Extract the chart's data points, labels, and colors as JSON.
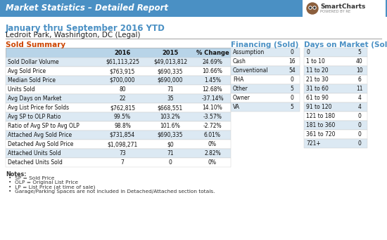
{
  "header_title": "Market Statistics – Detailed Report",
  "header_bg": "#4a90c4",
  "header_text_color": "#ffffff",
  "date_line": "January thru September 2016 YTD",
  "location_line": "Ledroit Park, Washington, DC (Legal)",
  "sold_summary_title": "Sold Summary",
  "sold_headers": [
    "",
    "2016",
    "2015",
    "% Change"
  ],
  "sold_rows": [
    [
      "Sold Dollar Volume",
      "$61,113,225",
      "$49,013,812",
      "24.69%"
    ],
    [
      "Avg Sold Price",
      "$763,915",
      "$690,335",
      "10.66%"
    ],
    [
      "Median Sold Price",
      "$700,000",
      "$690,000",
      "1.45%"
    ],
    [
      "Units Sold",
      "80",
      "71",
      "12.68%"
    ],
    [
      "Avg Days on Market",
      "22",
      "35",
      "-37.14%"
    ],
    [
      "Avg List Price for Solds",
      "$762,815",
      "$668,551",
      "14.10%"
    ],
    [
      "Avg SP to OLP Ratio",
      "99.5%",
      "103.2%",
      "-3.57%"
    ],
    [
      "Ratio of Avg SP to Avg OLP",
      "98.8%",
      "101.6%",
      "-2.72%"
    ],
    [
      "Attached Avg Sold Price",
      "$731,854",
      "$690,335",
      "6.01%"
    ],
    [
      "Detached Avg Sold Price",
      "$1,098,271",
      "$0",
      "0%"
    ],
    [
      "Attached Units Sold",
      "73",
      "71",
      "2.82%"
    ],
    [
      "Detached Units Sold",
      "7",
      "0",
      "0%"
    ]
  ],
  "financing_title": "Financing (Sold)",
  "financing_rows": [
    [
      "Assumption",
      "0"
    ],
    [
      "Cash",
      "16"
    ],
    [
      "Conventional",
      "54"
    ],
    [
      "FHA",
      "0"
    ],
    [
      "Other",
      "5"
    ],
    [
      "Owner",
      "0"
    ],
    [
      "VA",
      "5"
    ]
  ],
  "dom_title": "Days on Market (Sold)",
  "dom_rows": [
    [
      "0",
      "5"
    ],
    [
      "1 to 10",
      "40"
    ],
    [
      "11 to 20",
      "10"
    ],
    [
      "21 to 30",
      "6"
    ],
    [
      "31 to 60",
      "11"
    ],
    [
      "61 to 90",
      "4"
    ],
    [
      "91 to 120",
      "4"
    ],
    [
      "121 to 180",
      "0"
    ],
    [
      "181 to 360",
      "0"
    ],
    [
      "361 to 720",
      "0"
    ],
    [
      "721+",
      "0"
    ]
  ],
  "notes_title": "Notes:",
  "notes": [
    "SP = Sold Price",
    "OLP = Original List Price",
    "LP = List Price (at time of sale)",
    "Garage/Parking Spaces are not included in Detached/Attached section totals."
  ],
  "table_header_bg": "#b8d4e8",
  "table_alt_bg": "#dce9f3",
  "table_white_bg": "#ffffff",
  "accent_color": "#4a90c4",
  "sold_summary_color": "#cc4400",
  "financing_color": "#4a90c4",
  "dom_color": "#4a90c4"
}
